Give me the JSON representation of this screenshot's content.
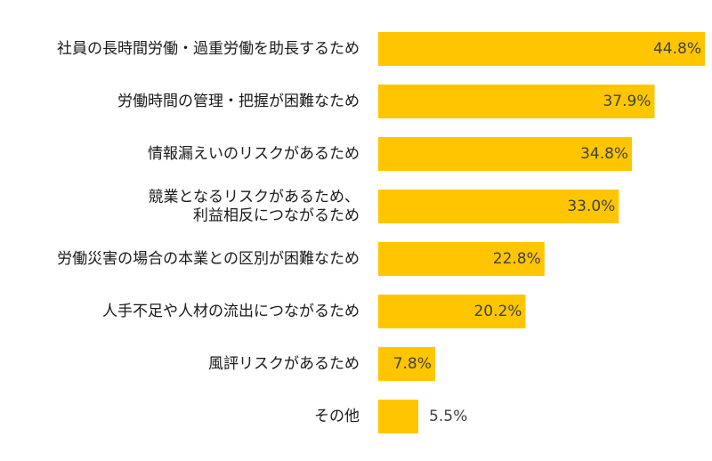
{
  "chart_data": {
    "type": "bar",
    "orientation": "horizontal",
    "unit": "%",
    "categories": [
      [
        "社員の長時間労働・過重労働を助長するため"
      ],
      [
        "労働時間の管理・把握が困難なため"
      ],
      [
        "情報漏えいのリスクがあるため"
      ],
      [
        "競業となるリスクがあるため、",
        "利益相反につながるため"
      ],
      [
        "労働災害の場合の本業との区別が困難なため"
      ],
      [
        "人手不足や人材の流出につながるため"
      ],
      [
        "風評リスクがあるため"
      ],
      [
        "その他"
      ]
    ],
    "values": [
      44.8,
      37.9,
      34.8,
      33.0,
      22.8,
      20.2,
      7.8,
      5.5
    ],
    "value_labels": [
      "44.8%",
      "37.9%",
      "34.8%",
      "33.0%",
      "22.8%",
      "20.2%",
      "7.8%",
      "5.5%"
    ],
    "xlim": [
      0,
      44.8
    ],
    "bar_color": "#FFC600",
    "grid": false,
    "legend": "none",
    "title": "",
    "xlabel": "",
    "ylabel": ""
  }
}
